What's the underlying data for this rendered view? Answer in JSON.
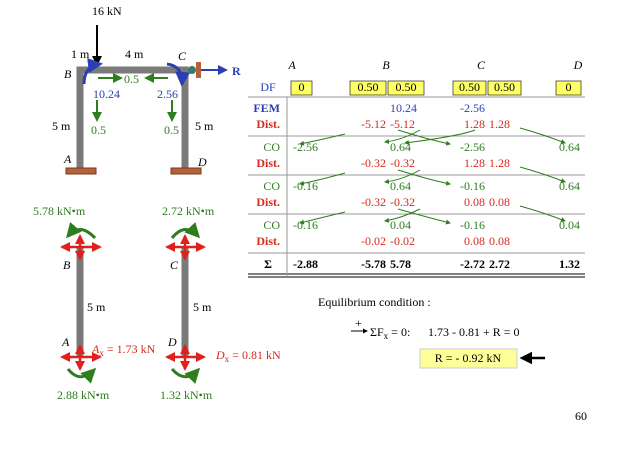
{
  "frame": {
    "load": "16 kN",
    "dim_left": "1 m",
    "dim_right": "4 m",
    "joint_b": "B",
    "joint_c": "C",
    "reaction": "R",
    "joint_a": "A",
    "joint_d": "D",
    "height_left": "5 m",
    "height_right": "5 m",
    "df_b": "0.5",
    "df_c": "0.5",
    "fem_b": "10.24",
    "fem_c": "2.56",
    "co_b": "0.5",
    "co_c": "0.5"
  },
  "table": {
    "joints": [
      "A",
      "B",
      "C",
      "D"
    ],
    "df": {
      "label": "DF",
      "values": [
        "0",
        "0.50",
        "0.50",
        "0.50",
        "0.50",
        "0"
      ]
    },
    "rows": [
      {
        "label": "FEM",
        "values": [
          null,
          null,
          "10.24",
          "-2.56",
          null,
          null
        ]
      },
      {
        "label": "Dist.",
        "values": [
          null,
          "-5.12",
          "-5.12",
          "1.28",
          "1.28",
          null
        ]
      },
      {
        "label": "CO",
        "values": [
          "-2.56",
          null,
          "0.64",
          "-2.56",
          null,
          "0.64"
        ]
      },
      {
        "label": "Dist.",
        "values": [
          null,
          "-0.32",
          "-0.32",
          "1.28",
          "1.28",
          null
        ]
      },
      {
        "label": "CO",
        "values": [
          "-0.16",
          null,
          "0.64",
          "-0.16",
          null,
          "0.64"
        ]
      },
      {
        "label": "Dist.",
        "values": [
          null,
          "-0.32",
          "-0.32",
          "0.08",
          "0.08",
          null
        ]
      },
      {
        "label": "CO",
        "values": [
          "-0.16",
          null,
          "0.04",
          "-0.16",
          null,
          "0.04"
        ]
      },
      {
        "label": "Dist.",
        "values": [
          null,
          "-0.02",
          "-0.02",
          "0.08",
          "0.08",
          null
        ]
      }
    ],
    "sum": {
      "label": "Σ",
      "values": [
        "-2.88",
        "-5.78",
        "5.78",
        "-2.72",
        "2.72",
        "1.32"
      ]
    }
  },
  "fbd": {
    "moment_b": "5.78 kN•m",
    "moment_c": "2.72 kN•m",
    "joint_b": "B",
    "joint_c": "C",
    "length_left": "5 m",
    "length_right": "5 m",
    "joint_a": "A",
    "joint_d": "D",
    "ax_symbol": "A",
    "ax_sub": "x",
    "ax_value": " = 1.73 kN",
    "dx_symbol": "D",
    "dx_sub": "x",
    "dx_value": " = 0.81 kN",
    "moment_a": "2.88 kN•m",
    "moment_d": "1.32 kN•m"
  },
  "equilibrium": {
    "title": "Equilibrium condition :",
    "sign": "+",
    "sum_symbol": "ΣF",
    "sum_sub": "x",
    "sum_rest": " = 0:",
    "equation": "1.73 - 0.81 + R = 0",
    "result": "R = - 0.92 kN"
  },
  "page_number": "60"
}
